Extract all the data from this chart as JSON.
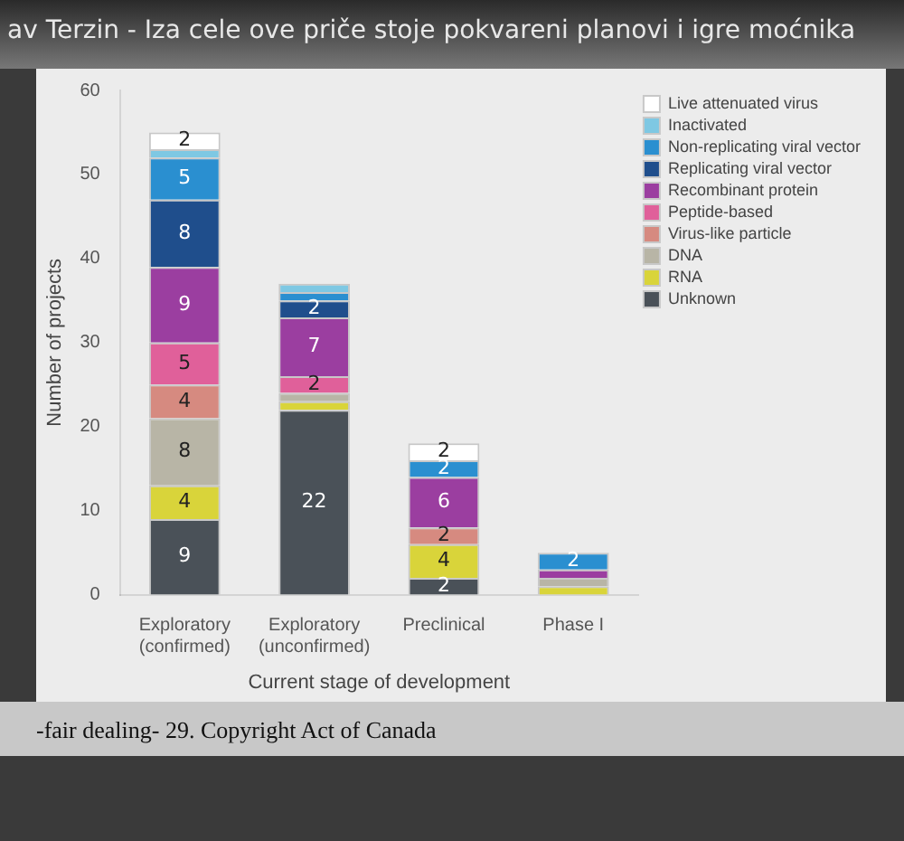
{
  "chart_data": {
    "type": "bar",
    "stacked": true,
    "xlabel": "Current stage of development",
    "ylabel": "Number of projects",
    "categories": [
      "Exploratory (confirmed)",
      "Exploratory (unconfirmed)",
      "Preclinical",
      "Phase I"
    ],
    "ylim": [
      0,
      60
    ],
    "yticks": [
      0,
      10,
      20,
      30,
      40,
      50,
      60
    ],
    "grid": false,
    "legend": "top right",
    "series": [
      {
        "name": "Unknown",
        "color": "#4a5158",
        "values": [
          9,
          22,
          2,
          null
        ],
        "value_labels": [
          "9",
          "22",
          "2",
          null
        ]
      },
      {
        "name": "RNA",
        "color": "#d9d43a",
        "values": [
          4,
          1,
          4,
          1
        ],
        "value_labels": [
          "4",
          null,
          "4",
          null
        ]
      },
      {
        "name": "DNA",
        "color": "#b8b5a6",
        "values": [
          8,
          1,
          null,
          1
        ],
        "value_labels": [
          "8",
          null,
          null,
          null
        ]
      },
      {
        "name": "Virus-like particle",
        "color": "#d68a80",
        "values": [
          4,
          null,
          2,
          null
        ],
        "value_labels": [
          "4",
          null,
          "2",
          null
        ]
      },
      {
        "name": "Peptide-based",
        "color": "#e0609a",
        "values": [
          5,
          2,
          null,
          null
        ],
        "value_labels": [
          "5",
          "2",
          null,
          null
        ]
      },
      {
        "name": "Recombinant protein",
        "color": "#9b3ea0",
        "values": [
          9,
          7,
          6,
          1
        ],
        "value_labels": [
          "9",
          "7",
          "6",
          null
        ]
      },
      {
        "name": "Replicating viral vector",
        "color": "#1f4e8c",
        "values": [
          8,
          2,
          null,
          null
        ],
        "value_labels": [
          "8",
          "2",
          null,
          null
        ]
      },
      {
        "name": "Non-replicating viral vector",
        "color": "#2a8fd0",
        "values": [
          5,
          1,
          2,
          2
        ],
        "value_labels": [
          "5",
          null,
          "2",
          "2"
        ]
      },
      {
        "name": "Inactivated",
        "color": "#7ec8e3",
        "values": [
          1,
          1,
          null,
          null
        ],
        "value_labels": [
          null,
          null,
          null,
          null
        ]
      },
      {
        "name": "Live attenuated virus",
        "color": "#ffffff",
        "values": [
          2,
          null,
          2,
          null
        ],
        "value_labels": [
          "2",
          null,
          "2",
          null
        ]
      }
    ],
    "annotations": [
      "av Terzin - Iza cele ove priče stoje pokvareni planovi i igre moćnika",
      "-fair dealing- 29. Copyright Act of Canada"
    ]
  }
}
